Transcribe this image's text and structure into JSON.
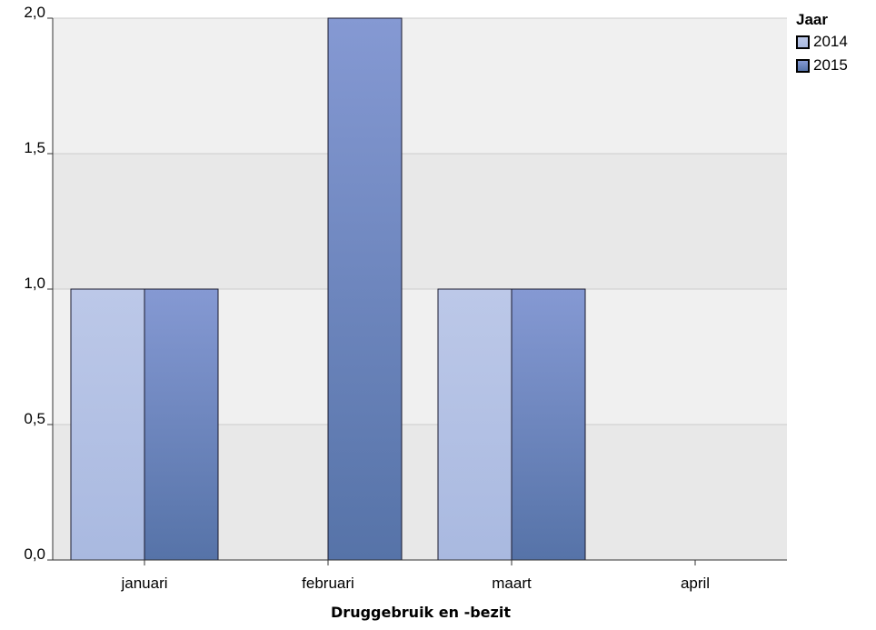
{
  "chart_data": {
    "type": "bar",
    "categories": [
      "januari",
      "februari",
      "maart",
      "april"
    ],
    "series": [
      {
        "name": "2014",
        "values": [
          1,
          0,
          1,
          0
        ],
        "color": "#b6c3e4"
      },
      {
        "name": "2015",
        "values": [
          1,
          2,
          1,
          0
        ],
        "color": "#7287c2"
      }
    ],
    "xlabel": "Druggebruik en -bezit",
    "ylabel": "",
    "ylim": [
      0,
      2
    ],
    "yticks": [
      "0,0",
      "0,5",
      "1,0",
      "1,5",
      "2,0"
    ],
    "legend_title": "Jaar",
    "legend_position": "top-right",
    "grid": true,
    "band_colors": [
      "#e8e8e8",
      "#f0f0f0"
    ]
  }
}
